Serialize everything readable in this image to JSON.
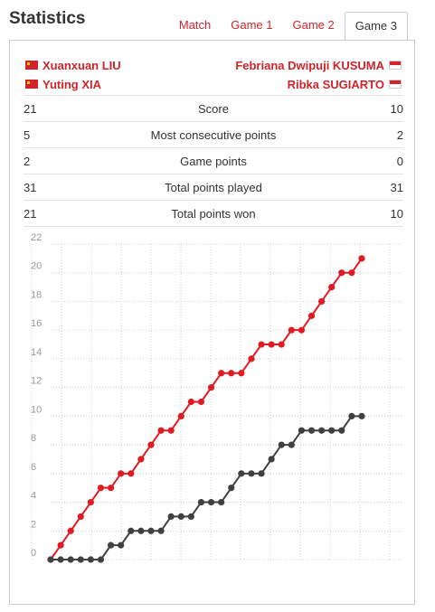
{
  "header": {
    "title": "Statistics"
  },
  "tabs": [
    {
      "label": "Match",
      "active": false
    },
    {
      "label": "Game 1",
      "active": false
    },
    {
      "label": "Game 2",
      "active": false
    },
    {
      "label": "Game 3",
      "active": true
    }
  ],
  "players": {
    "left": [
      {
        "name": "Xuanxuan LIU",
        "flag": "cn-flag-icon"
      },
      {
        "name": "Yuting XIA",
        "flag": "cn-flag-icon"
      }
    ],
    "right": [
      {
        "name": "Febriana Dwipuji KUSUMA",
        "flag": "id-flag-icon"
      },
      {
        "name": "Ribka SUGIARTO",
        "flag": "id-flag-icon"
      }
    ]
  },
  "stats": [
    {
      "left": "21",
      "label": "Score",
      "right": "10"
    },
    {
      "left": "5",
      "label": "Most consecutive points",
      "right": "2"
    },
    {
      "left": "2",
      "label": "Game points",
      "right": "0"
    },
    {
      "left": "31",
      "label": "Total points played",
      "right": "31"
    },
    {
      "left": "21",
      "label": "Total points won",
      "right": "10"
    }
  ],
  "colors": {
    "accent": "#d2232a",
    "series_a": "#e01b24",
    "series_b": "#404040",
    "grid": "#cccccc"
  },
  "chart_data": {
    "type": "line",
    "x": [
      0,
      1,
      2,
      3,
      4,
      5,
      6,
      7,
      8,
      9,
      10,
      11,
      12,
      13,
      14,
      15,
      16,
      17,
      18,
      19,
      20,
      21,
      22,
      23,
      24,
      25,
      26,
      27,
      28,
      29,
      30,
      31
    ],
    "series": [
      {
        "values": [
          0,
          1,
          2,
          3,
          4,
          5,
          5,
          6,
          6,
          7,
          8,
          9,
          9,
          10,
          11,
          11,
          12,
          13,
          13,
          13,
          14,
          15,
          15,
          15,
          16,
          16,
          17,
          18,
          19,
          20,
          20,
          21
        ]
      },
      {
        "values": [
          0,
          0,
          0,
          0,
          0,
          0,
          1,
          1,
          2,
          2,
          2,
          2,
          3,
          3,
          3,
          4,
          4,
          4,
          5,
          6,
          6,
          6,
          7,
          8,
          8,
          9,
          9,
          9,
          9,
          9,
          10,
          10
        ]
      }
    ],
    "y_ticks": [
      0,
      2,
      4,
      6,
      8,
      10,
      12,
      14,
      16,
      18,
      20,
      22
    ],
    "ylim": [
      0,
      22
    ],
    "xlim": [
      0,
      31
    ],
    "grid": true
  }
}
